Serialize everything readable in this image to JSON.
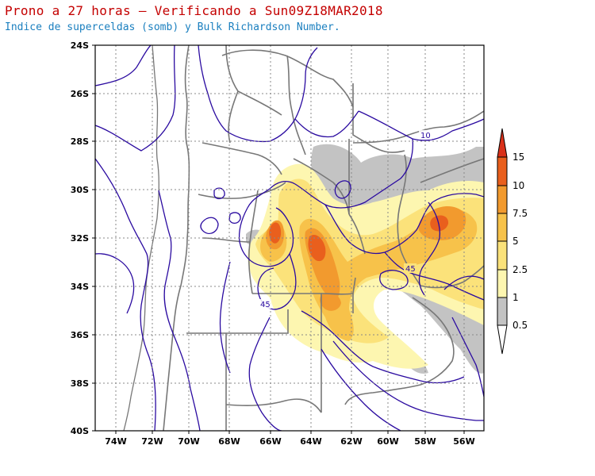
{
  "title": "Prono a 27 horas — Verificando a Sun09Z18MAR2018",
  "subtitle": "Indice de superceldas (somb) y Bulk Richardson Number.",
  "map": {
    "lat_labels": [
      "24S",
      "26S",
      "28S",
      "30S",
      "32S",
      "34S",
      "36S",
      "38S",
      "40S"
    ],
    "lon_labels": [
      "74W",
      "72W",
      "70W",
      "68W",
      "66W",
      "64W",
      "62W",
      "60W",
      "58W",
      "56W"
    ],
    "contour_labels": [
      "10",
      "45",
      "45"
    ],
    "colors": {
      "gray": "#c3c3c3",
      "level_1": "#fdf6b0",
      "level_2_5": "#fbe27a",
      "level_5": "#f7c24a",
      "level_7_5": "#f29a2e",
      "level_10": "#e95f1d",
      "level_15": "#d9311a",
      "brn_contour": "#2a0aa0",
      "borders": "#777777"
    }
  },
  "colorbar": {
    "labels": [
      "15",
      "10",
      "7.5",
      "5",
      "2.5",
      "1",
      "0.5"
    ]
  }
}
